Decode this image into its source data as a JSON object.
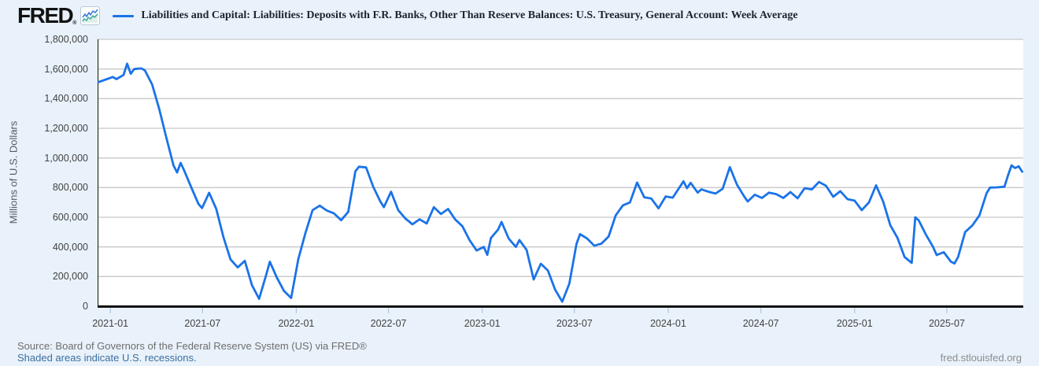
{
  "header": {
    "logo_text": "FRED",
    "logo_registered": "®",
    "series_title": "Liabilities and Capital: Liabilities: Deposits with F.R. Banks, Other Than Reserve Balances: U.S. Treasury, General Account: Week Average"
  },
  "footer": {
    "source": "Source: Board of Governors of the Federal Reserve System (US) via FRED®",
    "recession_note": "Shaded areas indicate U.S. recessions.",
    "watermark": "fred.stlouisfed.org"
  },
  "colors": {
    "background": "#e9f2fb",
    "plot_background": "#ffffff",
    "grid": "#c8c8c8",
    "line": "#1a73e8",
    "axis": "#111111",
    "tick_mark": "#aac6e0",
    "link": "#3c6e9e"
  },
  "chart_data": {
    "type": "line",
    "title": "Liabilities and Capital: Liabilities: Deposits with F.R. Banks, Other Than Reserve Balances: U.S. Treasury, General Account: Week Average",
    "xlabel": "",
    "ylabel": "Millions of U.S. Dollars",
    "ylim": [
      0,
      1800000
    ],
    "grid": true,
    "legend_position": "top-left",
    "y_tick_values": [
      0,
      200000,
      400000,
      600000,
      800000,
      1000000,
      1200000,
      1400000,
      1600000,
      1800000
    ],
    "y_tick_labels": [
      "0",
      "200,000",
      "400,000",
      "600,000",
      "800,000",
      "1,000,000",
      "1,200,000",
      "1,400,000",
      "1,600,000",
      "1,800,000"
    ],
    "x_ticks": [
      "2021-01",
      "2021-07",
      "2022-01",
      "2022-07",
      "2023-01",
      "2023-07",
      "2024-01",
      "2024-07",
      "2025-01",
      "2025-07"
    ],
    "x_range": [
      "2020-12-07",
      "2025-11-28"
    ],
    "series_name": "Deposits with F.R. Banks, Other Than Reserve Balances: U.S. Treasury, General Account: Week Average",
    "unit": "Millions of U.S. Dollars",
    "observations": [
      [
        "2020-12-09",
        1512000
      ],
      [
        "2020-12-23",
        1529000
      ],
      [
        "2021-01-06",
        1546000
      ],
      [
        "2021-01-13",
        1532000
      ],
      [
        "2021-01-27",
        1560000
      ],
      [
        "2021-02-03",
        1636000
      ],
      [
        "2021-02-10",
        1568000
      ],
      [
        "2021-02-17",
        1600000
      ],
      [
        "2021-03-03",
        1604000
      ],
      [
        "2021-03-10",
        1590000
      ],
      [
        "2021-03-24",
        1495000
      ],
      [
        "2021-04-07",
        1330000
      ],
      [
        "2021-04-21",
        1135000
      ],
      [
        "2021-05-05",
        950000
      ],
      [
        "2021-05-12",
        902000
      ],
      [
        "2021-05-19",
        967000
      ],
      [
        "2021-05-26",
        915000
      ],
      [
        "2021-06-09",
        800000
      ],
      [
        "2021-06-23",
        690000
      ],
      [
        "2021-06-30",
        662000
      ],
      [
        "2021-07-14",
        765000
      ],
      [
        "2021-07-28",
        655000
      ],
      [
        "2021-08-11",
        465000
      ],
      [
        "2021-08-25",
        315000
      ],
      [
        "2021-09-08",
        262000
      ],
      [
        "2021-09-22",
        306000
      ],
      [
        "2021-10-06",
        142000
      ],
      [
        "2021-10-20",
        50000
      ],
      [
        "2021-11-03",
        212000
      ],
      [
        "2021-11-10",
        300000
      ],
      [
        "2021-11-24",
        192000
      ],
      [
        "2021-12-08",
        102000
      ],
      [
        "2021-12-22",
        55000
      ],
      [
        "2022-01-05",
        318000
      ],
      [
        "2022-01-19",
        495000
      ],
      [
        "2022-02-02",
        648000
      ],
      [
        "2022-02-16",
        678000
      ],
      [
        "2022-03-02",
        645000
      ],
      [
        "2022-03-16",
        626000
      ],
      [
        "2022-03-30",
        580000
      ],
      [
        "2022-04-13",
        636000
      ],
      [
        "2022-04-27",
        910000
      ],
      [
        "2022-05-04",
        941000
      ],
      [
        "2022-05-18",
        936000
      ],
      [
        "2022-06-01",
        806000
      ],
      [
        "2022-06-15",
        706000
      ],
      [
        "2022-06-22",
        668000
      ],
      [
        "2022-07-06",
        772000
      ],
      [
        "2022-07-20",
        648000
      ],
      [
        "2022-08-03",
        592000
      ],
      [
        "2022-08-17",
        552000
      ],
      [
        "2022-08-31",
        586000
      ],
      [
        "2022-09-14",
        558000
      ],
      [
        "2022-09-28",
        668000
      ],
      [
        "2022-10-12",
        622000
      ],
      [
        "2022-10-26",
        656000
      ],
      [
        "2022-11-09",
        585000
      ],
      [
        "2022-11-23",
        540000
      ],
      [
        "2022-12-07",
        446000
      ],
      [
        "2022-12-21",
        376000
      ],
      [
        "2023-01-04",
        400000
      ],
      [
        "2023-01-11",
        346000
      ],
      [
        "2023-01-18",
        460000
      ],
      [
        "2023-02-01",
        516000
      ],
      [
        "2023-02-08",
        568000
      ],
      [
        "2023-02-22",
        456000
      ],
      [
        "2023-03-08",
        400000
      ],
      [
        "2023-03-15",
        446000
      ],
      [
        "2023-03-29",
        380000
      ],
      [
        "2023-04-12",
        180000
      ],
      [
        "2023-04-26",
        286000
      ],
      [
        "2023-05-10",
        240000
      ],
      [
        "2023-05-24",
        112000
      ],
      [
        "2023-06-07",
        30000
      ],
      [
        "2023-06-21",
        152000
      ],
      [
        "2023-07-05",
        420000
      ],
      [
        "2023-07-12",
        486000
      ],
      [
        "2023-07-26",
        456000
      ],
      [
        "2023-08-09",
        408000
      ],
      [
        "2023-08-23",
        422000
      ],
      [
        "2023-09-06",
        470000
      ],
      [
        "2023-09-20",
        612000
      ],
      [
        "2023-10-04",
        680000
      ],
      [
        "2023-10-18",
        700000
      ],
      [
        "2023-11-01",
        834000
      ],
      [
        "2023-11-15",
        735000
      ],
      [
        "2023-11-29",
        726000
      ],
      [
        "2023-12-13",
        660000
      ],
      [
        "2023-12-27",
        740000
      ],
      [
        "2024-01-10",
        732000
      ],
      [
        "2024-01-31",
        842000
      ],
      [
        "2024-02-07",
        796000
      ],
      [
        "2024-02-14",
        832000
      ],
      [
        "2024-02-28",
        766000
      ],
      [
        "2024-03-06",
        788000
      ],
      [
        "2024-03-20",
        772000
      ],
      [
        "2024-04-03",
        760000
      ],
      [
        "2024-04-17",
        792000
      ],
      [
        "2024-05-01",
        938000
      ],
      [
        "2024-05-15",
        820000
      ],
      [
        "2024-05-29",
        742000
      ],
      [
        "2024-06-05",
        706000
      ],
      [
        "2024-06-19",
        752000
      ],
      [
        "2024-07-03",
        730000
      ],
      [
        "2024-07-17",
        766000
      ],
      [
        "2024-07-31",
        756000
      ],
      [
        "2024-08-14",
        730000
      ],
      [
        "2024-08-28",
        770000
      ],
      [
        "2024-09-11",
        728000
      ],
      [
        "2024-09-25",
        796000
      ],
      [
        "2024-10-09",
        788000
      ],
      [
        "2024-10-23",
        838000
      ],
      [
        "2024-11-06",
        812000
      ],
      [
        "2024-11-20",
        738000
      ],
      [
        "2024-12-04",
        776000
      ],
      [
        "2024-12-18",
        722000
      ],
      [
        "2025-01-01",
        712000
      ],
      [
        "2025-01-15",
        648000
      ],
      [
        "2025-01-29",
        700000
      ],
      [
        "2025-02-12",
        815000
      ],
      [
        "2025-02-26",
        706000
      ],
      [
        "2025-03-12",
        546000
      ],
      [
        "2025-03-26",
        462000
      ],
      [
        "2025-04-09",
        332000
      ],
      [
        "2025-04-23",
        292000
      ],
      [
        "2025-04-30",
        600000
      ],
      [
        "2025-05-07",
        578000
      ],
      [
        "2025-05-21",
        482000
      ],
      [
        "2025-06-04",
        400000
      ],
      [
        "2025-06-11",
        345000
      ],
      [
        "2025-06-25",
        364000
      ],
      [
        "2025-07-09",
        300000
      ],
      [
        "2025-07-16",
        288000
      ],
      [
        "2025-07-23",
        332000
      ],
      [
        "2025-08-06",
        500000
      ],
      [
        "2025-08-20",
        545000
      ],
      [
        "2025-09-03",
        612000
      ],
      [
        "2025-09-17",
        762000
      ],
      [
        "2025-09-24",
        800000
      ],
      [
        "2025-10-08",
        802000
      ],
      [
        "2025-10-22",
        806000
      ],
      [
        "2025-10-29",
        882000
      ],
      [
        "2025-11-05",
        950000
      ],
      [
        "2025-11-12",
        932000
      ],
      [
        "2025-11-19",
        944000
      ],
      [
        "2025-11-26",
        907000
      ]
    ]
  }
}
